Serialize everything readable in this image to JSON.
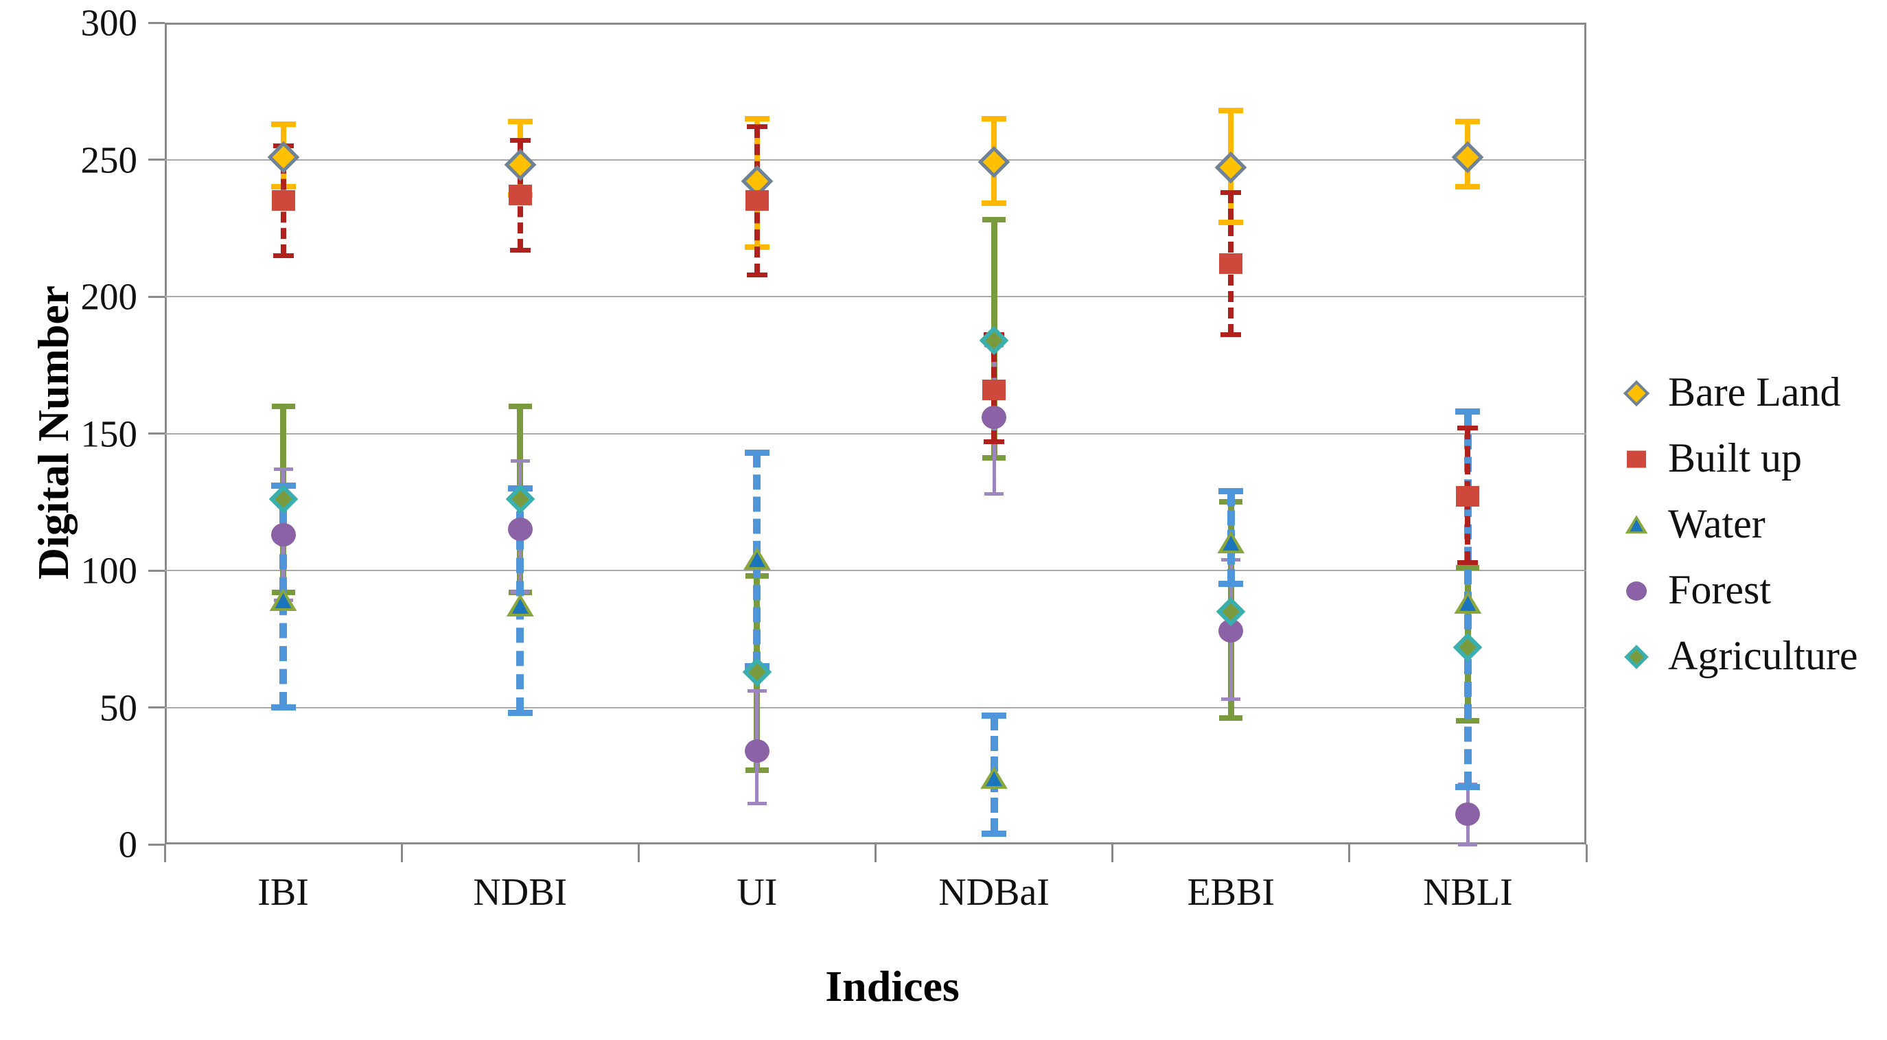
{
  "figure": {
    "background": "#ffffff"
  },
  "axes": {
    "y_title": "Digital Number",
    "x_title": "Indices",
    "y_ticks": [
      0,
      50,
      100,
      150,
      200,
      250,
      300
    ],
    "y_min": 0,
    "y_max": 300,
    "grid_color": "#a9a9a9",
    "border_color": "#8a8a8a",
    "text_color": "#111111"
  },
  "chart_data": {
    "type": "scatter",
    "title": "",
    "xlabel": "Indices",
    "ylabel": "Digital Number",
    "categories": [
      "IBI",
      "NDBI",
      "UI",
      "NDBaI",
      "EBBI",
      "NBLI"
    ],
    "ylim": [
      0,
      300
    ],
    "grid": "horizontal-only",
    "legend_position": "right",
    "note": "mean digital number per land cover class with error bars (err_lo / err_hi are absolute values)",
    "series": [
      {
        "name": "Bare Land",
        "marker": "diamond",
        "fill": "#FFC000",
        "edge": "#6E8399",
        "err_color": "#FFB700",
        "err_style": "solid",
        "values": [
          251,
          248,
          242,
          249,
          247,
          251
        ],
        "err_lo": [
          240,
          237,
          218,
          234,
          227,
          240
        ],
        "err_hi": [
          263,
          264,
          265,
          265,
          268,
          264
        ]
      },
      {
        "name": "Built up",
        "marker": "square",
        "fill": "#CE483B",
        "edge": "#CE483B",
        "err_color": "#B0211E",
        "err_style": "dashed",
        "values": [
          235,
          237,
          235,
          166,
          212,
          127
        ],
        "err_lo": [
          215,
          217,
          208,
          147,
          186,
          103
        ],
        "err_hi": [
          255,
          257,
          262,
          186,
          238,
          152
        ]
      },
      {
        "name": "Water",
        "marker": "triangle",
        "fill": "#1B75BC",
        "edge": "#8AA63E",
        "err_color": "#4E95D9",
        "err_style": "dashed",
        "values": [
          89,
          87,
          104,
          24,
          110,
          88
        ],
        "err_lo": [
          50,
          48,
          65,
          4,
          95,
          21
        ],
        "err_hi": [
          131,
          130,
          143,
          47,
          129,
          158
        ]
      },
      {
        "name": "Forest",
        "marker": "circle",
        "fill": "#8B62A5",
        "edge": "#8B62A5",
        "err_color": "#9D85C0",
        "err_style": "solid",
        "values": [
          113,
          115,
          34,
          156,
          78,
          11
        ],
        "err_lo": [
          89,
          92,
          15,
          128,
          53,
          0
        ],
        "err_hi": [
          137,
          140,
          56,
          182,
          104,
          22
        ]
      },
      {
        "name": "Agriculture",
        "marker": "diamond",
        "fill": "#7A9B3D",
        "edge": "#3AAFB0",
        "err_color": "#7A9B3D",
        "err_style": "solid",
        "values": [
          126,
          126,
          63,
          184,
          85,
          72
        ],
        "err_lo": [
          92,
          92,
          27,
          141,
          46,
          45
        ],
        "err_hi": [
          160,
          160,
          98,
          228,
          125,
          101
        ]
      }
    ]
  },
  "legend": {
    "items": [
      "Bare Land",
      "Built up",
      "Water",
      "Forest",
      "Agriculture"
    ]
  }
}
